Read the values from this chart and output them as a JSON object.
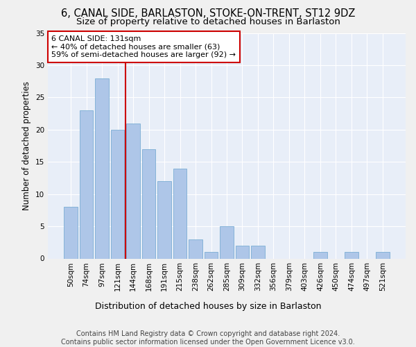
{
  "title": "6, CANAL SIDE, BARLASTON, STOKE-ON-TRENT, ST12 9DZ",
  "subtitle": "Size of property relative to detached houses in Barlaston",
  "xlabel": "Distribution of detached houses by size in Barlaston",
  "ylabel": "Number of detached properties",
  "bar_labels": [
    "50sqm",
    "74sqm",
    "97sqm",
    "121sqm",
    "144sqm",
    "168sqm",
    "191sqm",
    "215sqm",
    "238sqm",
    "262sqm",
    "285sqm",
    "309sqm",
    "332sqm",
    "356sqm",
    "379sqm",
    "403sqm",
    "426sqm",
    "450sqm",
    "474sqm",
    "497sqm",
    "521sqm"
  ],
  "bar_values": [
    8,
    23,
    28,
    20,
    21,
    17,
    12,
    14,
    3,
    1,
    5,
    2,
    2,
    0,
    0,
    0,
    1,
    0,
    1,
    0,
    1
  ],
  "bar_color": "#aec6e8",
  "bar_edgecolor": "#7aadd4",
  "ylim": [
    0,
    35
  ],
  "yticks": [
    0,
    5,
    10,
    15,
    20,
    25,
    30,
    35
  ],
  "annotation_text_line1": "6 CANAL SIDE: 131sqm",
  "annotation_text_line2": "← 40% of detached houses are smaller (63)",
  "annotation_text_line3": "59% of semi-detached houses are larger (92) →",
  "annotation_box_color": "#ffffff",
  "annotation_box_edgecolor": "#cc0000",
  "red_line_color": "#cc0000",
  "footer_line1": "Contains HM Land Registry data © Crown copyright and database right 2024.",
  "footer_line2": "Contains public sector information licensed under the Open Government Licence v3.0.",
  "background_color": "#e8eef8",
  "fig_background_color": "#f0f0f0",
  "grid_color": "#ffffff",
  "title_fontsize": 10.5,
  "subtitle_fontsize": 9.5,
  "xlabel_fontsize": 9,
  "ylabel_fontsize": 8.5,
  "tick_fontsize": 7.5,
  "annotation_fontsize": 8,
  "footer_fontsize": 7
}
